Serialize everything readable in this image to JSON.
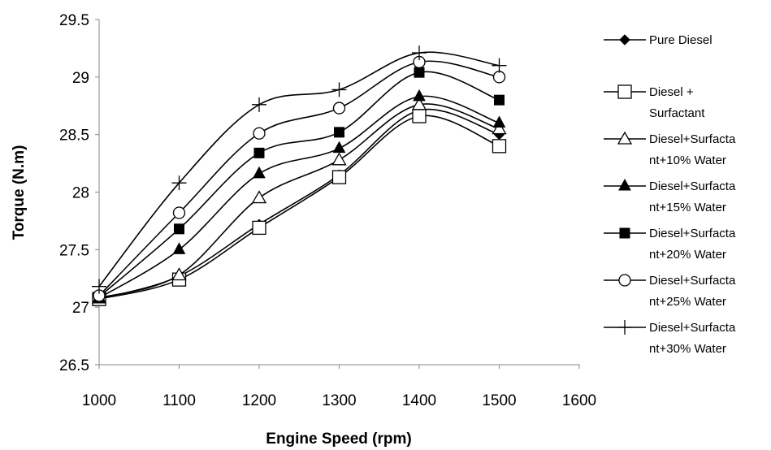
{
  "chart_data": {
    "type": "line",
    "title": "",
    "xlabel": "Engine Speed (rpm)",
    "ylabel": "Torque (N.m)",
    "xlim": [
      1000,
      1600
    ],
    "ylim": [
      26.5,
      29.5
    ],
    "xticks": [
      "1000",
      "1100",
      "1200",
      "1300",
      "1400",
      "1500",
      "1600"
    ],
    "yticks": [
      "26.5",
      "27",
      "27.5",
      "28",
      "28.5",
      "29",
      "29.5"
    ],
    "smooth": true,
    "grid": false,
    "legend_position": "right",
    "x": [
      1000,
      1100,
      1200,
      1300,
      1400,
      1500
    ],
    "series": [
      {
        "name": "Pure Diesel",
        "legend_lines": [
          "Pure Diesel"
        ],
        "marker": "diamond-filled",
        "values": [
          27.07,
          27.27,
          27.72,
          28.15,
          28.71,
          28.5
        ]
      },
      {
        "name": "Diesel + Surfactant",
        "legend_lines": [
          "Diesel +",
          "Surfactant"
        ],
        "marker": "square-open",
        "values": [
          27.07,
          27.24,
          27.69,
          28.13,
          28.66,
          28.4
        ]
      },
      {
        "name": "Diesel+Surfactant+10% Water",
        "legend_lines": [
          "Diesel+Surfacta",
          "nt+10% Water"
        ],
        "marker": "triangle-open",
        "values": [
          27.08,
          27.28,
          27.95,
          28.28,
          28.76,
          28.55
        ]
      },
      {
        "name": "Diesel+Surfactant+15% Water",
        "legend_lines": [
          "Diesel+Surfacta",
          "nt+15% Water"
        ],
        "marker": "triangle-filled",
        "values": [
          27.08,
          27.5,
          28.16,
          28.38,
          28.83,
          28.6
        ]
      },
      {
        "name": "Diesel+Surfactant+20% Water",
        "legend_lines": [
          "Diesel+Surfacta",
          "nt+20% Water"
        ],
        "marker": "square-filled",
        "values": [
          27.09,
          27.68,
          28.34,
          28.52,
          29.04,
          28.8
        ]
      },
      {
        "name": "Diesel+Surfactant+25% Water",
        "legend_lines": [
          "Diesel+Surfacta",
          "nt+25% Water"
        ],
        "marker": "circle-open",
        "values": [
          27.1,
          27.82,
          28.51,
          28.73,
          29.13,
          29.0
        ]
      },
      {
        "name": "Diesel+Surfactant+30% Water",
        "legend_lines": [
          "Diesel+Surfacta",
          "nt+30% Water"
        ],
        "marker": "plus",
        "values": [
          27.18,
          28.08,
          28.76,
          28.89,
          29.21,
          29.1
        ]
      }
    ]
  }
}
